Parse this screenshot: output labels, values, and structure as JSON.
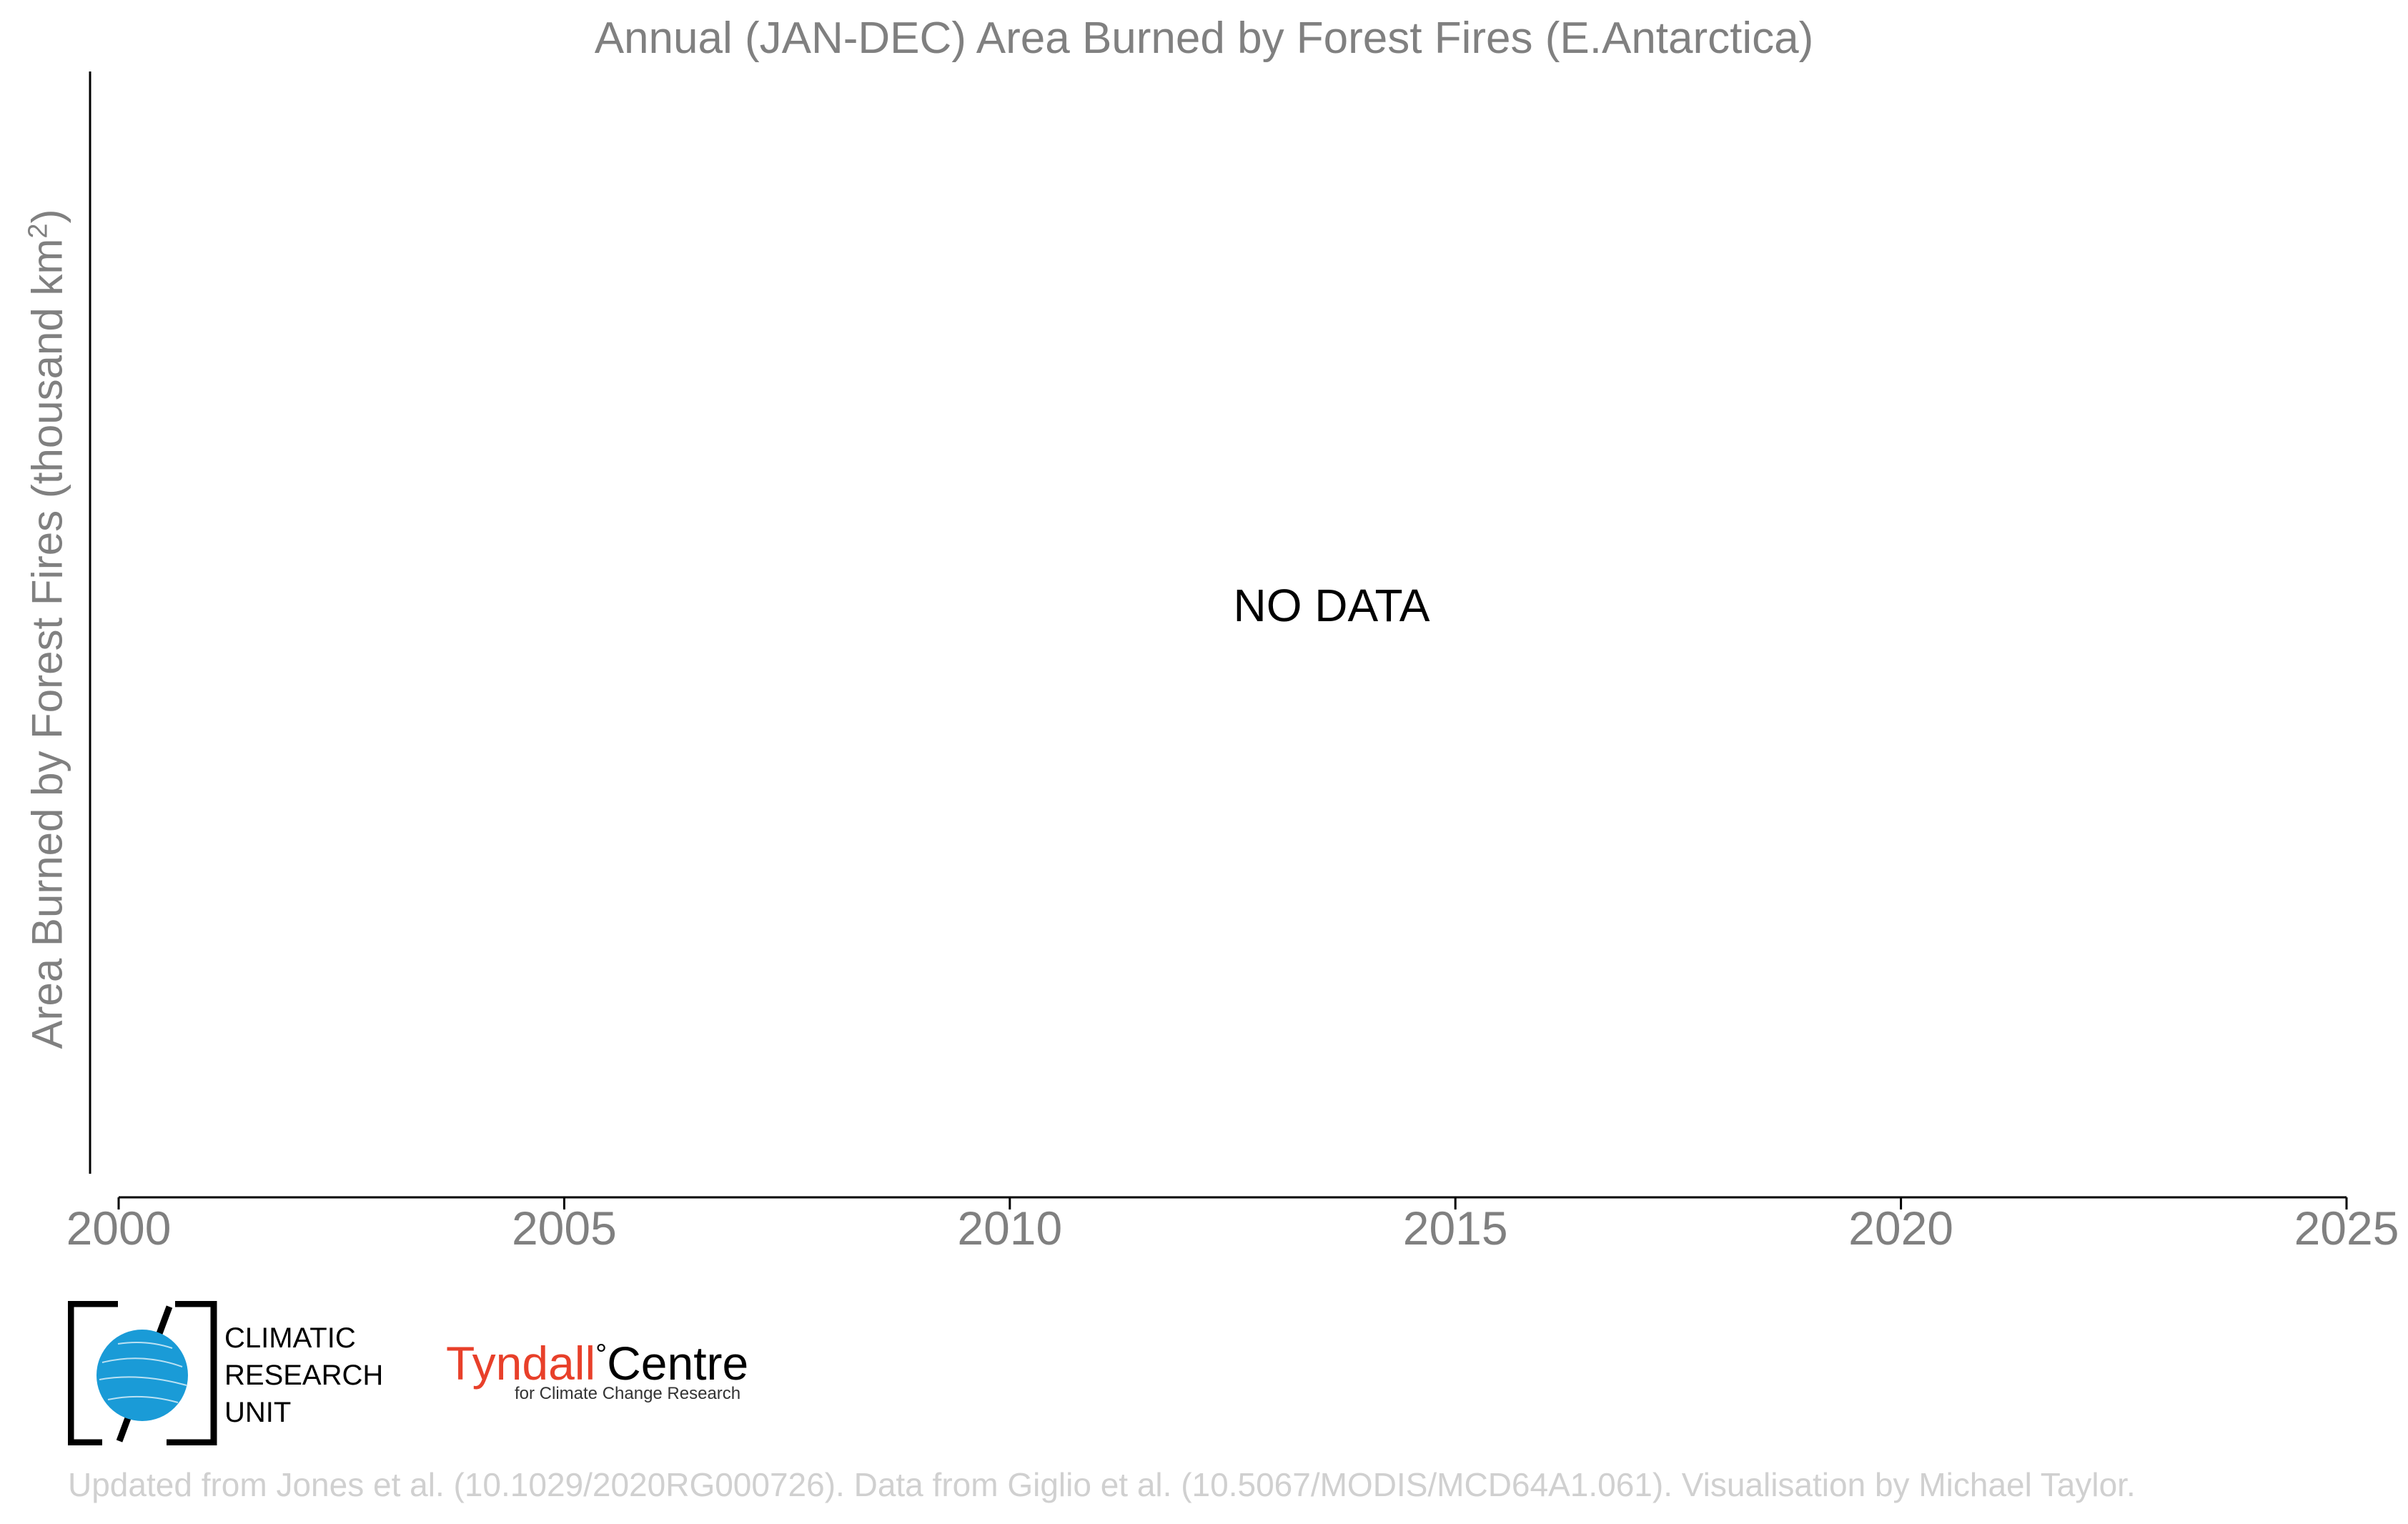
{
  "chart_data": {
    "type": "bar",
    "title": "Annual (JAN-DEC) Area Burned by Forest Fires (E.Antarctica)",
    "xlabel": "",
    "ylabel": "Area Burned by Forest Fires (thousand km²)",
    "x_ticks": [
      "2000",
      "2005",
      "2010",
      "2015",
      "2020",
      "2025"
    ],
    "xlim": [
      2000,
      2025
    ],
    "grid": false,
    "categories": [],
    "values": [],
    "annotation": "NO DATA"
  },
  "logos": {
    "cru_text": [
      "CLIMATIC",
      "RESEARCH",
      "UNIT"
    ],
    "tyndall_name": "Tyndall",
    "tyndall_degree": "°",
    "tyndall_centre": "Centre",
    "tyndall_sub": "for Climate Change Research"
  },
  "footer": "Updated from Jones et al. (10.1029/2020RG000726). Data from Giglio et al. (10.5067/MODIS/MCD64A1.061). Visualisation by Michael Taylor.",
  "colors": {
    "text_gray": "#808080",
    "axis": "#000000",
    "cru_blue": "#1a9bd7",
    "tyndall_red": "#e8402a",
    "footer_gray": "#d0d0d0"
  }
}
